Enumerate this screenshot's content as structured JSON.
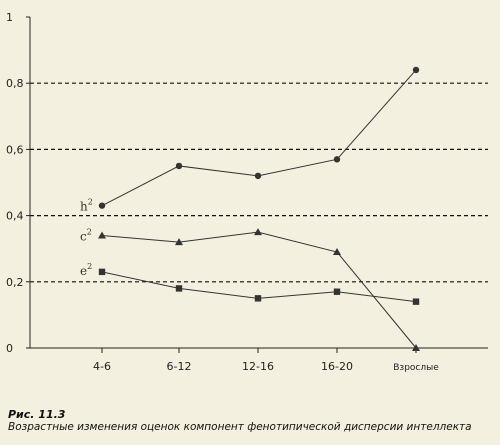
{
  "chart_data": {
    "type": "line",
    "categories": [
      "4-6",
      "6-12",
      "12-16",
      "16-20",
      "Взрослые"
    ],
    "ylim": [
      0,
      1
    ],
    "y_ticks": [
      0,
      0.2,
      0.4,
      0.6,
      0.8,
      1
    ],
    "y_tick_labels": [
      "0",
      "0,2",
      "0,4",
      "0,6",
      "0,8",
      "1"
    ],
    "grid": "horizontal dashed at 0.2, 0.4, 0.6, 0.8",
    "legend": "none (series labelled inline at left)",
    "series": [
      {
        "name": "h",
        "superscript": "2",
        "marker": "circle",
        "values": [
          0.43,
          0.55,
          0.52,
          0.57,
          0.84
        ]
      },
      {
        "name": "c",
        "superscript": "2",
        "marker": "triangle",
        "values": [
          0.34,
          0.32,
          0.35,
          0.29,
          0.0
        ]
      },
      {
        "name": "e",
        "superscript": "2",
        "marker": "square",
        "values": [
          0.23,
          0.18,
          0.15,
          0.17,
          0.14
        ]
      }
    ]
  },
  "caption": {
    "title": "Рис. 11.3",
    "text": "Возрастные изменения оценок компонент фенотипической дисперсии интеллекта"
  },
  "colors": {
    "background": "#f4f0df",
    "line": "#333333",
    "grid": "#111111"
  }
}
